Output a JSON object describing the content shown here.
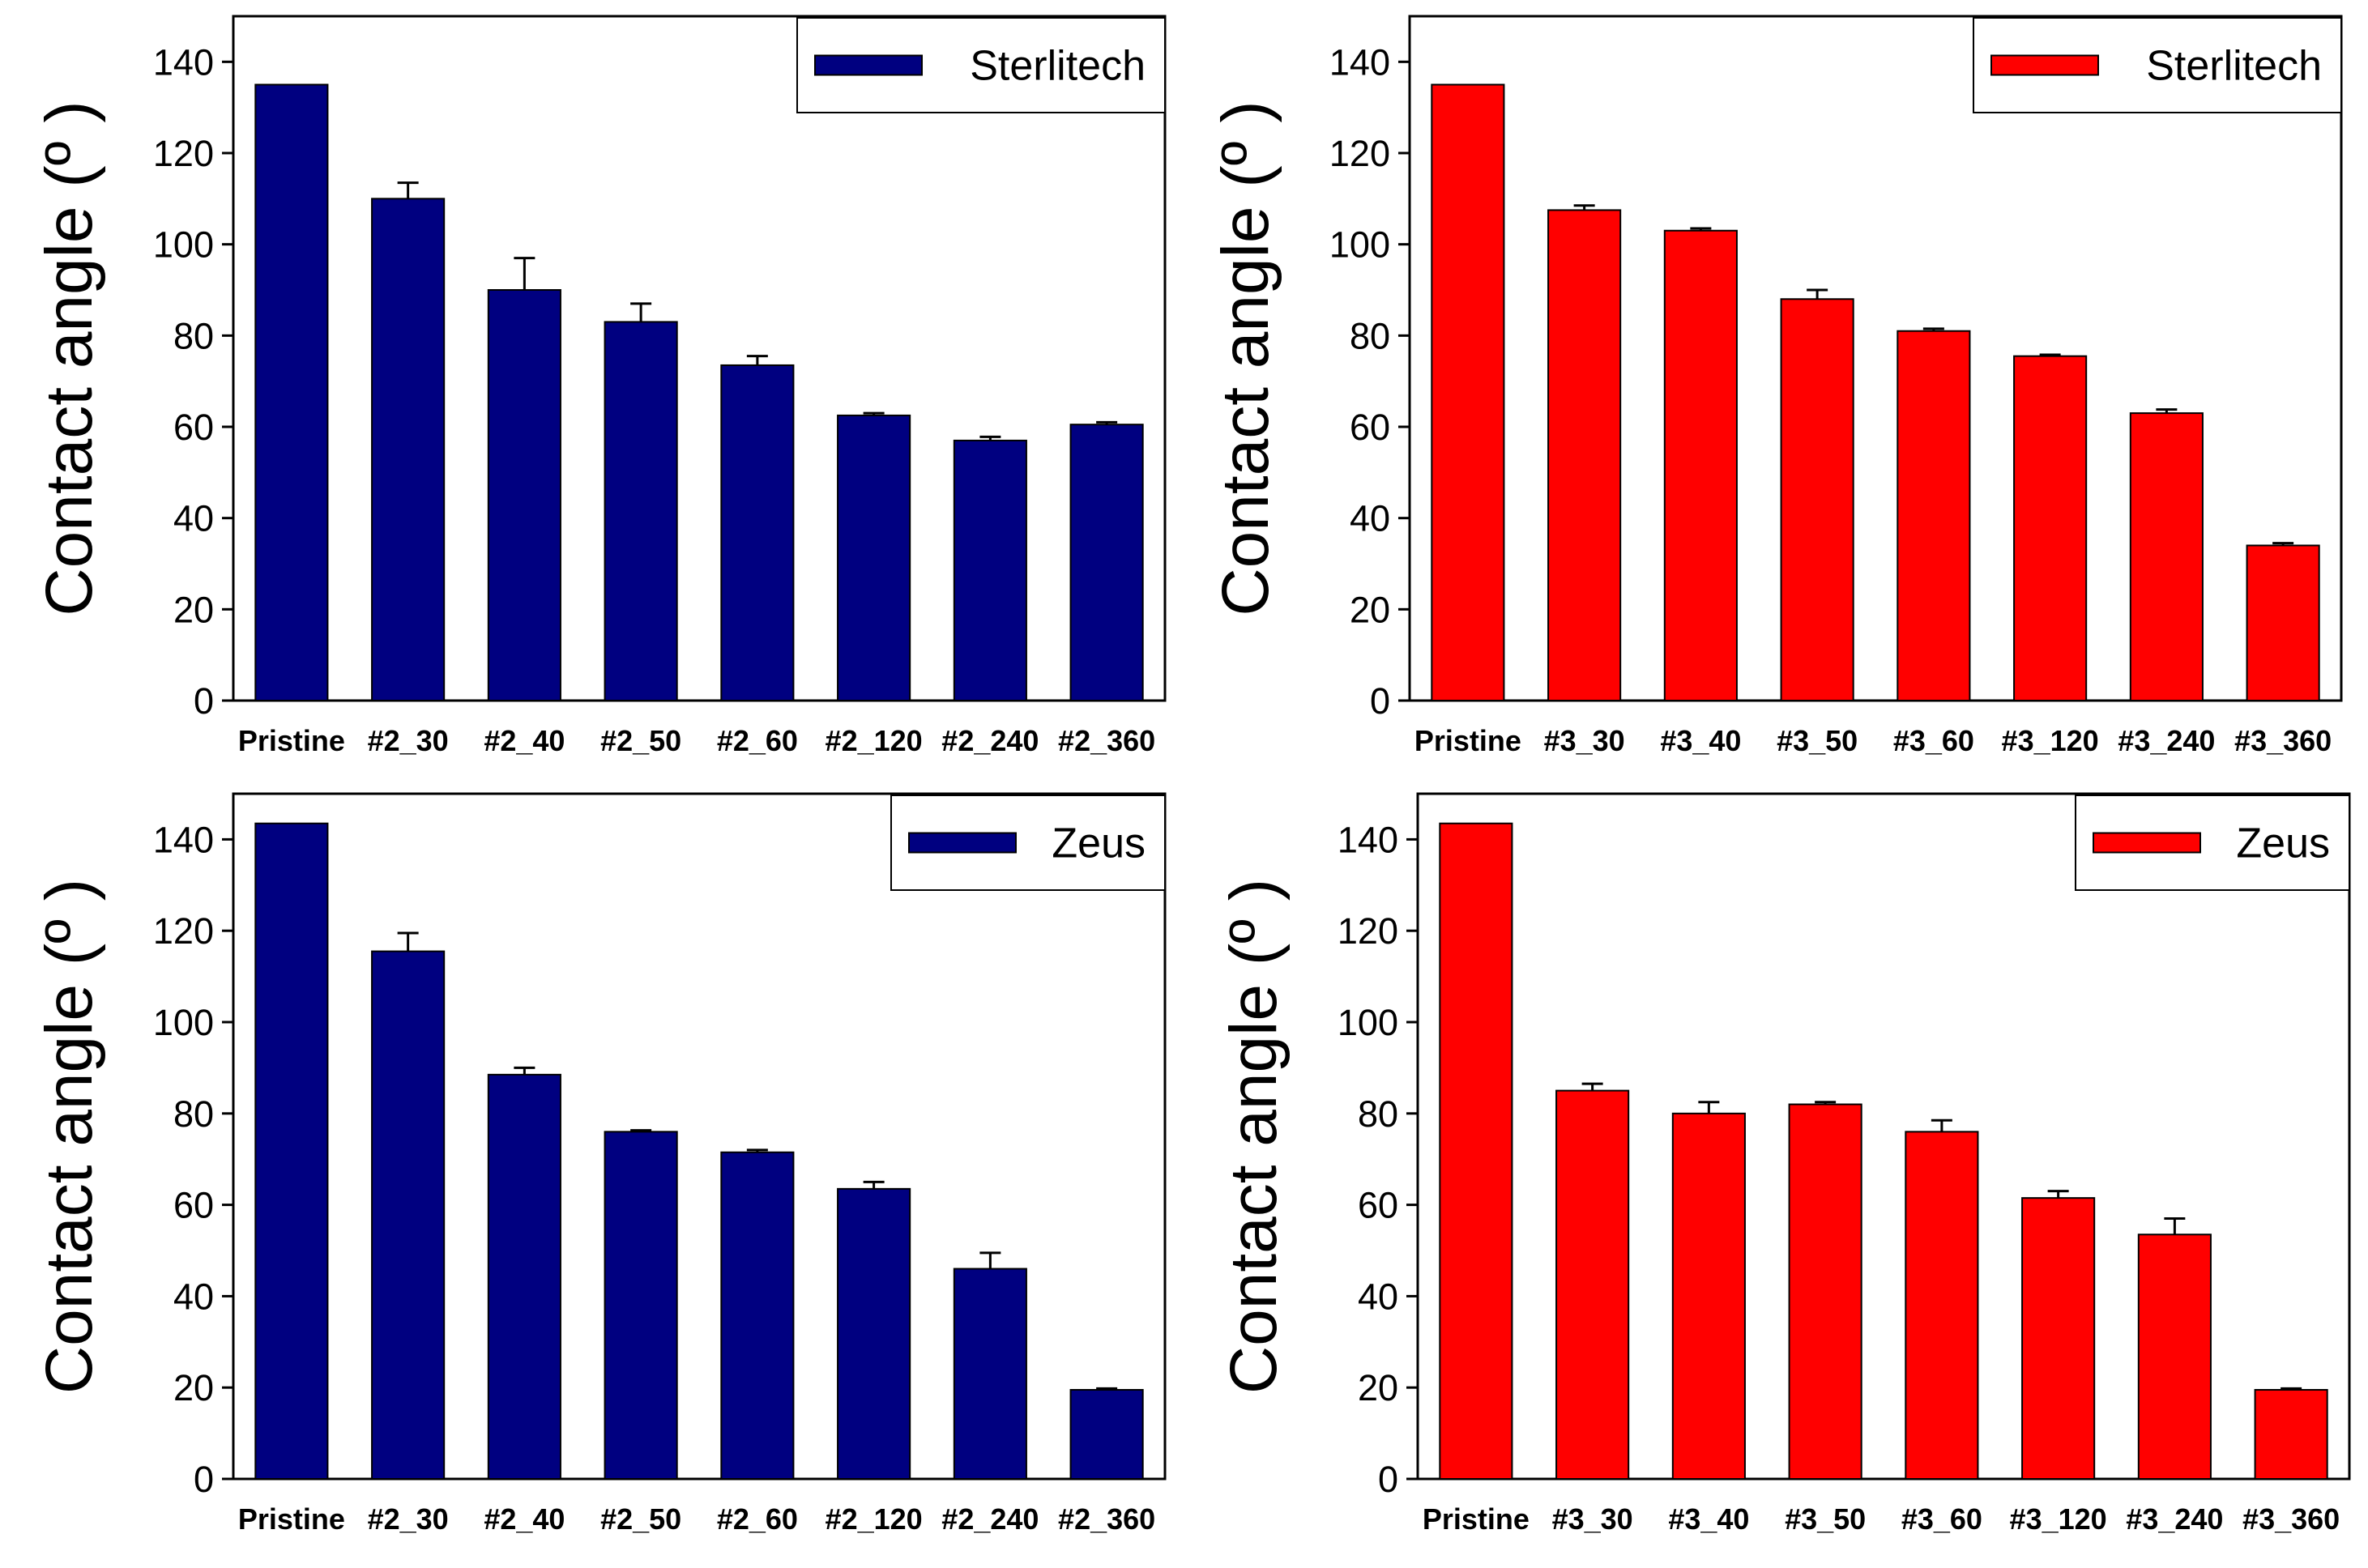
{
  "chart_data": [
    {
      "type": "bar",
      "ylabel": "Contact angle (º  )",
      "ylim": [
        0,
        150
      ],
      "yticks": [
        0,
        20,
        40,
        60,
        80,
        100,
        120,
        140
      ],
      "categories": [
        "Pristine",
        "#2_30",
        "#2_40",
        "#2_50",
        "#2_60",
        "#2_120",
        "#2_240",
        "#2_360"
      ],
      "series": [
        {
          "name": "Sterlitech",
          "color": "#000080",
          "values": [
            135,
            110,
            90,
            83,
            73.5,
            62.5,
            57,
            60.5
          ],
          "errors": [
            0,
            3.5,
            7,
            4,
            2,
            0.5,
            0.8,
            0.5
          ]
        }
      ],
      "legend": "top-right",
      "grid": false
    },
    {
      "type": "bar",
      "ylabel": "Contact angle (º  )",
      "ylim": [
        0,
        150
      ],
      "yticks": [
        0,
        20,
        40,
        60,
        80,
        100,
        120,
        140
      ],
      "categories": [
        "Pristine",
        "#3_30",
        "#3_40",
        "#3_50",
        "#3_60",
        "#3_120",
        "#3_240",
        "#3_360"
      ],
      "series": [
        {
          "name": "Sterlitech",
          "color": "#ff0000",
          "values": [
            135,
            107.5,
            103,
            88,
            81,
            75.5,
            63,
            34
          ],
          "errors": [
            0,
            1,
            0.5,
            2,
            0.5,
            0.3,
            0.8,
            0.5
          ]
        }
      ],
      "legend": "top-right",
      "grid": false
    },
    {
      "type": "bar",
      "ylabel": "Contact angle (º  )",
      "ylim": [
        0,
        150
      ],
      "yticks": [
        0,
        20,
        40,
        60,
        80,
        100,
        120,
        140
      ],
      "categories": [
        "Pristine",
        "#2_30",
        "#2_40",
        "#2_50",
        "#2_60",
        "#2_120",
        "#2_240",
        "#2_360"
      ],
      "series": [
        {
          "name": "Zeus",
          "color": "#000080",
          "values": [
            143.5,
            115.5,
            88.5,
            76,
            71.5,
            63.5,
            46,
            19.5
          ],
          "errors": [
            0,
            4,
            1.5,
            0.3,
            0.5,
            1.5,
            3.5,
            0.3
          ]
        }
      ],
      "legend": "top-right",
      "grid": false
    },
    {
      "type": "bar",
      "ylabel": "Contact angle (º  )",
      "ylim": [
        0,
        150
      ],
      "yticks": [
        0,
        20,
        40,
        60,
        80,
        100,
        120,
        140
      ],
      "categories": [
        "Pristine",
        "#3_30",
        "#3_40",
        "#3_50",
        "#3_60",
        "#3_120",
        "#3_240",
        "#3_360"
      ],
      "series": [
        {
          "name": "Zeus",
          "color": "#ff0000",
          "values": [
            143.5,
            85,
            80,
            82,
            76,
            61.5,
            53.5,
            19.5
          ],
          "errors": [
            0,
            1.5,
            2.5,
            0.5,
            2.5,
            1.5,
            3.5,
            0.3
          ]
        }
      ],
      "legend": "top-right",
      "grid": false
    }
  ]
}
